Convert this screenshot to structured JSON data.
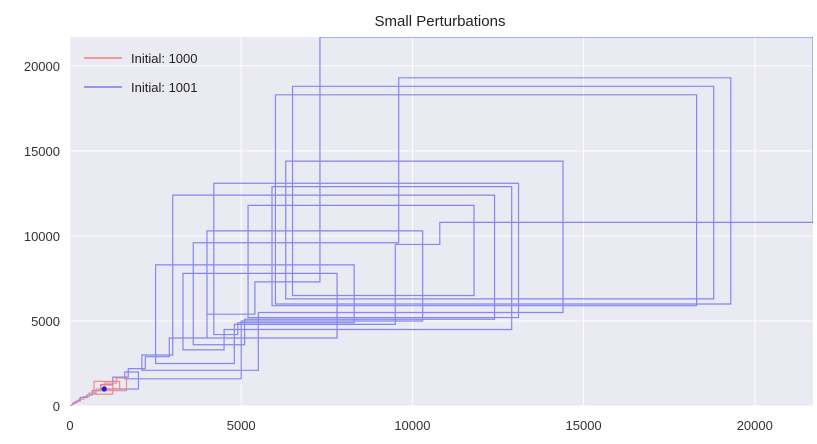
{
  "chart_data": {
    "type": "line",
    "title": "Small Perturbations",
    "xlabel": "",
    "ylabel": "",
    "xlim": [
      0,
      21700
    ],
    "ylim": [
      0,
      21700
    ],
    "x_ticks": [
      0,
      5000,
      10000,
      15000,
      20000
    ],
    "y_ticks": [
      0,
      5000,
      10000,
      15000,
      20000
    ],
    "grid": true,
    "legend_position": "top-left",
    "series": [
      {
        "name": "Initial: 1000",
        "color": "#f08080",
        "points": [
          [
            0,
            0
          ],
          [
            80,
            80
          ],
          [
            80,
            160
          ],
          [
            160,
            160
          ],
          [
            160,
            260
          ],
          [
            260,
            260
          ],
          [
            260,
            400
          ],
          [
            400,
            400
          ],
          [
            400,
            560
          ],
          [
            560,
            560
          ],
          [
            560,
            760
          ],
          [
            760,
            760
          ],
          [
            760,
            1000
          ],
          [
            1000,
            1000
          ],
          [
            1000,
            1350
          ],
          [
            1350,
            1350
          ],
          [
            1350,
            1650
          ],
          [
            1650,
            1650
          ],
          [
            1650,
            900
          ],
          [
            900,
            900
          ],
          [
            900,
            1250
          ],
          [
            1250,
            1250
          ],
          [
            1250,
            700
          ],
          [
            700,
            700
          ],
          [
            700,
            1450
          ],
          [
            1450,
            1450
          ],
          [
            1450,
            1000
          ],
          [
            1000,
            1000
          ]
        ]
      },
      {
        "name": "Initial: 1001",
        "color": "#7b7bf0",
        "points": [
          [
            0,
            0
          ],
          [
            100,
            100
          ],
          [
            100,
            200
          ],
          [
            200,
            200
          ],
          [
            200,
            300
          ],
          [
            300,
            300
          ],
          [
            300,
            500
          ],
          [
            500,
            500
          ],
          [
            500,
            650
          ],
          [
            650,
            650
          ],
          [
            650,
            900
          ],
          [
            900,
            900
          ],
          [
            900,
            1250
          ],
          [
            1250,
            1250
          ],
          [
            1250,
            1700
          ],
          [
            1700,
            1700
          ],
          [
            1700,
            2200
          ],
          [
            2200,
            2200
          ],
          [
            2200,
            2900
          ],
          [
            2900,
            2900
          ],
          [
            2900,
            4000
          ],
          [
            4000,
            4000
          ],
          [
            4000,
            5400
          ],
          [
            5400,
            5400
          ],
          [
            5400,
            7300
          ],
          [
            7300,
            7300
          ],
          [
            7300,
            21700
          ],
          [
            21700,
            21700
          ],
          [
            21700,
            10800
          ],
          [
            10800,
            10800
          ],
          [
            10800,
            9500
          ],
          [
            9500,
            9500
          ],
          [
            9500,
            4800
          ],
          [
            4800,
            4800
          ],
          [
            4800,
            2500
          ],
          [
            2500,
            2500
          ],
          [
            2500,
            8300
          ],
          [
            8300,
            8300
          ],
          [
            8300,
            4900
          ],
          [
            4900,
            4900
          ],
          [
            4900,
            4200
          ],
          [
            4200,
            4200
          ],
          [
            4200,
            13100
          ],
          [
            13100,
            13100
          ],
          [
            13100,
            5200
          ],
          [
            5200,
            5200
          ],
          [
            5200,
            11800
          ],
          [
            11800,
            11800
          ],
          [
            11800,
            6500
          ],
          [
            6500,
            6500
          ],
          [
            6500,
            18800
          ],
          [
            18800,
            18800
          ],
          [
            18800,
            6300
          ],
          [
            6300,
            6300
          ],
          [
            6300,
            14400
          ],
          [
            14400,
            14400
          ],
          [
            14400,
            5500
          ],
          [
            5500,
            5500
          ],
          [
            5500,
            2100
          ],
          [
            2100,
            2100
          ],
          [
            2100,
            3000
          ],
          [
            3000,
            3000
          ],
          [
            3000,
            12400
          ],
          [
            12400,
            12400
          ],
          [
            12400,
            5100
          ],
          [
            5100,
            5100
          ],
          [
            5100,
            3600
          ],
          [
            3600,
            3600
          ],
          [
            3600,
            9600
          ],
          [
            9600,
            9600
          ],
          [
            9600,
            19300
          ],
          [
            19300,
            19300
          ],
          [
            19300,
            6000
          ],
          [
            6000,
            6000
          ],
          [
            6000,
            18300
          ],
          [
            18300,
            18300
          ],
          [
            18300,
            5900
          ],
          [
            5900,
            5900
          ],
          [
            5900,
            12900
          ],
          [
            12900,
            12900
          ],
          [
            12900,
            4500
          ],
          [
            4500,
            4500
          ],
          [
            4500,
            3300
          ],
          [
            3300,
            3300
          ],
          [
            3300,
            7800
          ],
          [
            7800,
            7800
          ],
          [
            7800,
            4000
          ],
          [
            4000,
            4000
          ],
          [
            4000,
            10300
          ],
          [
            10300,
            10300
          ],
          [
            10300,
            5000
          ],
          [
            5000,
            5000
          ],
          [
            5000,
            1600
          ],
          [
            1600,
            1600
          ],
          [
            1600,
            2000
          ],
          [
            2000,
            2000
          ],
          [
            2000,
            1000
          ],
          [
            1000,
            1000
          ]
        ]
      }
    ],
    "markers": [
      {
        "x": 1000,
        "y": 1000,
        "color": "#1f1fd6"
      }
    ]
  }
}
